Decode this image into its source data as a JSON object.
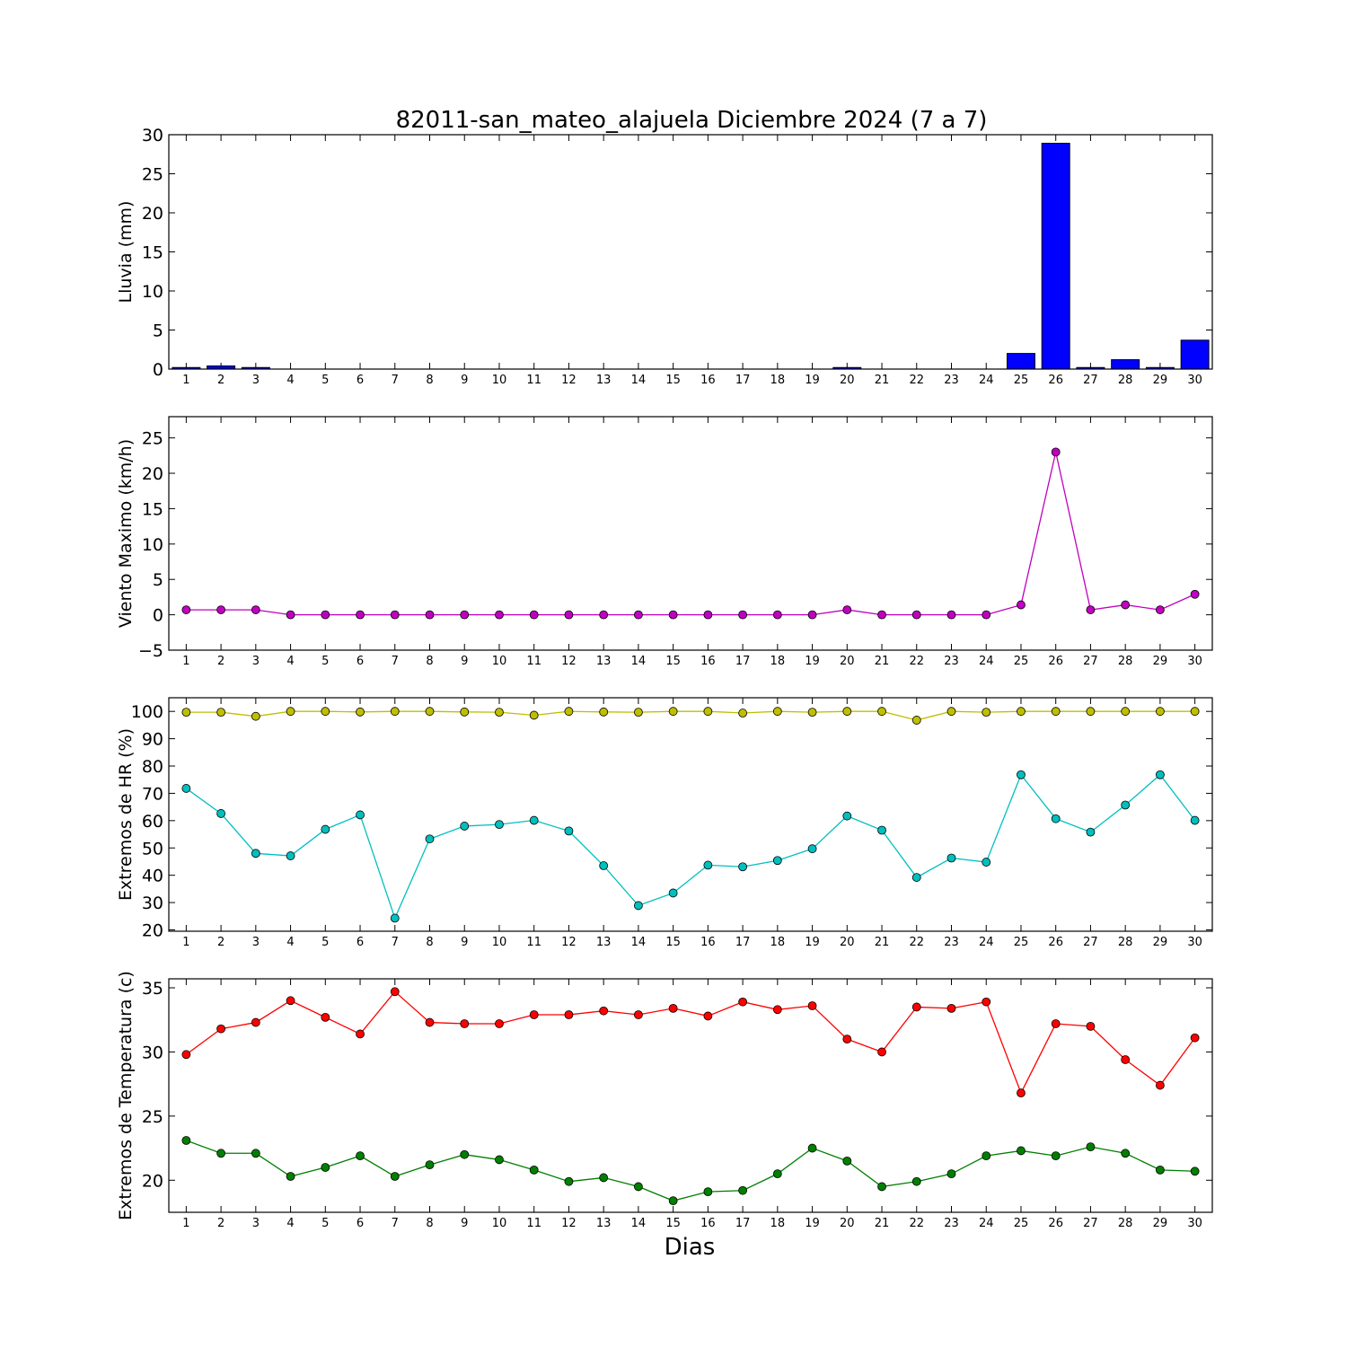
{
  "figure": {
    "title": "82011-san_mateo_alajuela Diciembre 2024  (7 a 7)",
    "xlabel": "Dias"
  },
  "chart_data": [
    {
      "type": "bar",
      "id": "rain",
      "ylabel": "Lluvia (mm)",
      "categories": [
        "1",
        "2",
        "3",
        "4",
        "5",
        "6",
        "7",
        "8",
        "9",
        "10",
        "11",
        "12",
        "13",
        "14",
        "15",
        "16",
        "17",
        "18",
        "19",
        "20",
        "21",
        "22",
        "23",
        "24",
        "25",
        "26",
        "27",
        "28",
        "29",
        "30"
      ],
      "ylim": [
        0,
        30
      ],
      "yticks": [
        0,
        5,
        10,
        15,
        20,
        25,
        30
      ],
      "series": [
        {
          "color": "#0000ff",
          "values": [
            0.2,
            0.4,
            0.2,
            0,
            0,
            0,
            0,
            0,
            0,
            0,
            0,
            0,
            0,
            0,
            0,
            0,
            0,
            0,
            0,
            0.2,
            0,
            0,
            0,
            0,
            2.0,
            28.9,
            0.2,
            1.2,
            0.2,
            3.7
          ]
        }
      ]
    },
    {
      "type": "line",
      "id": "wind",
      "ylabel": "Viento Maximo (km/h)",
      "categories": [
        "1",
        "2",
        "3",
        "4",
        "5",
        "6",
        "7",
        "8",
        "9",
        "10",
        "11",
        "12",
        "13",
        "14",
        "15",
        "16",
        "17",
        "18",
        "19",
        "20",
        "21",
        "22",
        "23",
        "24",
        "25",
        "26",
        "27",
        "28",
        "29",
        "30"
      ],
      "ylim": [
        -5,
        28
      ],
      "yticks": [
        -5,
        0,
        5,
        10,
        15,
        20,
        25
      ],
      "series": [
        {
          "color": "#bf00bf",
          "values": [
            0.7,
            0.7,
            0.7,
            0,
            0,
            0,
            0,
            0,
            0,
            0,
            0,
            0,
            0,
            0,
            0,
            0,
            0,
            0,
            0,
            0.7,
            0,
            0,
            0,
            0,
            1.4,
            23.0,
            0.7,
            1.4,
            0.7,
            2.9
          ]
        }
      ]
    },
    {
      "type": "line",
      "id": "humidity",
      "ylabel": "Extremos de HR (%)",
      "categories": [
        "1",
        "2",
        "3",
        "4",
        "5",
        "6",
        "7",
        "8",
        "9",
        "10",
        "11",
        "12",
        "13",
        "14",
        "15",
        "16",
        "17",
        "18",
        "19",
        "20",
        "21",
        "22",
        "23",
        "24",
        "25",
        "26",
        "27",
        "28",
        "29",
        "30"
      ],
      "ylim": [
        19.5,
        105
      ],
      "yticks": [
        20,
        30,
        40,
        50,
        60,
        70,
        80,
        90,
        100
      ],
      "series": [
        {
          "color": "#bfbf00",
          "values": [
            99.7,
            99.7,
            98.2,
            100,
            100,
            99.8,
            100,
            100,
            99.8,
            99.7,
            98.6,
            100,
            99.8,
            99.7,
            100,
            100,
            99.4,
            100,
            99.7,
            100,
            100,
            96.8,
            100,
            99.7,
            100,
            100,
            100,
            100,
            100,
            100
          ]
        },
        {
          "color": "#00bfbf",
          "values": [
            71.8,
            62.6,
            48.0,
            47.1,
            56.8,
            62.1,
            24.3,
            53.3,
            58.0,
            58.6,
            60.1,
            56.2,
            43.5,
            28.9,
            33.5,
            43.7,
            43.1,
            45.4,
            49.7,
            61.7,
            56.5,
            39.2,
            46.3,
            44.8,
            76.8,
            60.7,
            55.8,
            65.7,
            76.8,
            60.1
          ]
        }
      ]
    },
    {
      "type": "line",
      "id": "temperature",
      "ylabel": "Extremos de Temperatura (c)",
      "categories": [
        "1",
        "2",
        "3",
        "4",
        "5",
        "6",
        "7",
        "8",
        "9",
        "10",
        "11",
        "12",
        "13",
        "14",
        "15",
        "16",
        "17",
        "18",
        "19",
        "20",
        "21",
        "22",
        "23",
        "24",
        "25",
        "26",
        "27",
        "28",
        "29",
        "30"
      ],
      "ylim": [
        17.5,
        35.7
      ],
      "yticks": [
        20,
        25,
        30,
        35
      ],
      "series": [
        {
          "color": "#ff0000",
          "values": [
            29.8,
            31.8,
            32.3,
            34.0,
            32.7,
            31.4,
            34.7,
            32.3,
            32.2,
            32.2,
            32.9,
            32.9,
            33.2,
            32.9,
            33.4,
            32.8,
            33.9,
            33.3,
            33.6,
            31.0,
            30.0,
            33.5,
            33.4,
            33.9,
            26.8,
            32.2,
            32.0,
            29.4,
            27.4,
            31.1
          ]
        },
        {
          "color": "#007f00",
          "values": [
            23.1,
            22.1,
            22.1,
            20.3,
            21.0,
            21.9,
            20.3,
            21.2,
            22.0,
            21.6,
            20.8,
            19.9,
            20.2,
            19.5,
            18.4,
            19.1,
            19.2,
            20.5,
            22.5,
            21.5,
            19.5,
            19.9,
            20.5,
            21.9,
            22.3,
            21.9,
            22.6,
            22.1,
            20.8,
            20.7
          ]
        }
      ]
    }
  ]
}
